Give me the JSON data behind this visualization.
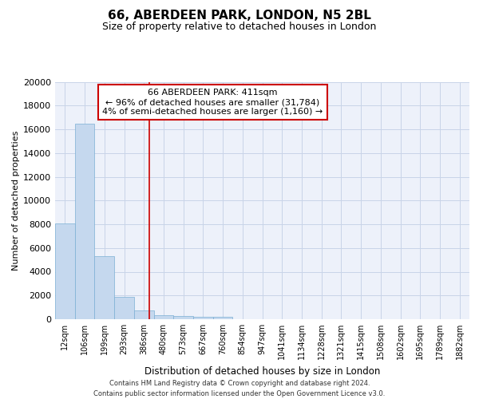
{
  "title": "66, ABERDEEN PARK, LONDON, N5 2BL",
  "subtitle": "Size of property relative to detached houses in London",
  "xlabel": "Distribution of detached houses by size in London",
  "ylabel": "Number of detached properties",
  "footer_line1": "Contains HM Land Registry data © Crown copyright and database right 2024.",
  "footer_line2": "Contains public sector information licensed under the Open Government Licence v3.0.",
  "bar_color": "#c5d8ee",
  "bar_edge_color": "#7bafd4",
  "grid_color": "#c8d4e8",
  "annotation_line1": "66 ABERDEEN PARK: 411sqm",
  "annotation_line2": "← 96% of detached houses are smaller (31,784)",
  "annotation_line3": "4% of semi-detached houses are larger (1,160) →",
  "vline_color": "#cc0000",
  "annotation_box_color": "#cc0000",
  "ylim": [
    0,
    20000
  ],
  "bin_labels": [
    "12sqm",
    "106sqm",
    "199sqm",
    "293sqm",
    "386sqm",
    "480sqm",
    "573sqm",
    "667sqm",
    "760sqm",
    "854sqm",
    "947sqm",
    "1041sqm",
    "1134sqm",
    "1228sqm",
    "1321sqm",
    "1415sqm",
    "1508sqm",
    "1602sqm",
    "1695sqm",
    "1789sqm",
    "1882sqm"
  ],
  "bar_heights": [
    8100,
    16500,
    5300,
    1850,
    750,
    350,
    280,
    200,
    200,
    0,
    0,
    0,
    0,
    0,
    0,
    0,
    0,
    0,
    0,
    0,
    0
  ],
  "yticks": [
    0,
    2000,
    4000,
    6000,
    8000,
    10000,
    12000,
    14000,
    16000,
    18000,
    20000
  ],
  "background_color": "#edf1fa",
  "fig_bg": "#ffffff",
  "title_fontsize": 11,
  "subtitle_fontsize": 9,
  "ylabel_fontsize": 8,
  "xlabel_fontsize": 8.5,
  "ytick_fontsize": 8,
  "xtick_fontsize": 7,
  "footer_fontsize": 6,
  "annot_fontsize": 8,
  "vline_x": 4.27
}
